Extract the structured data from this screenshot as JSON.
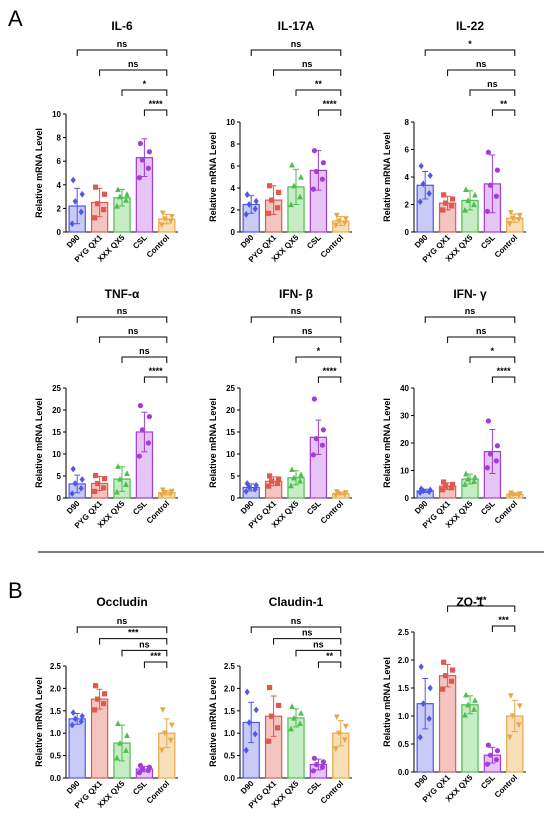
{
  "panel_labels": [
    "A",
    "B"
  ],
  "colors": {
    "groups": [
      "#4f57e6",
      "#e0594f",
      "#4fbd4f",
      "#a23ed6",
      "#e6a94a"
    ],
    "fills": [
      "#c9cbf7",
      "#f4c4bf",
      "#c6ecc5",
      "#e6c4f5",
      "#f9dfb8"
    ],
    "axis": "#000000"
  },
  "chart_data": [
    {
      "id": "il6",
      "panel": "A",
      "type": "bar",
      "title": "IL-6",
      "ylabel": "Relative mRNA Level",
      "categories": [
        "D90",
        "PYG QX1",
        "XXX QX5",
        "CSL",
        "Control"
      ],
      "values": [
        2.2,
        2.5,
        2.9,
        6.3,
        1.1
      ],
      "errors": [
        1.5,
        1.2,
        0.7,
        1.6,
        0.4
      ],
      "points": [
        [
          0.7,
          1.7,
          2.6,
          3.2,
          4.4
        ],
        [
          1.2,
          1.9,
          2.4,
          3.2,
          3.8
        ],
        [
          2.2,
          2.7,
          3.0,
          3.2,
          3.6
        ],
        [
          4.6,
          5.4,
          6.1,
          6.8,
          7.5
        ],
        [
          0.6,
          0.9,
          1.1,
          1.3,
          1.6
        ]
      ],
      "ylim": [
        0,
        10
      ],
      "yticks": [
        0,
        2,
        4,
        6,
        8,
        10
      ],
      "comparisons": [
        {
          "from": 0,
          "to": 4,
          "label": "ns"
        },
        {
          "from": 1,
          "to": 4,
          "label": "ns"
        },
        {
          "from": 2,
          "to": 4,
          "label": "*"
        },
        {
          "from": 3,
          "to": 4,
          "label": "****"
        }
      ]
    },
    {
      "id": "il17a",
      "panel": "A",
      "type": "bar",
      "title": "IL-17A",
      "ylabel": "Relative mRNA Level",
      "categories": [
        "D90",
        "PYG QX1",
        "XXX QX5",
        "CSL",
        "Control"
      ],
      "values": [
        2.5,
        2.9,
        4.1,
        5.6,
        1.0
      ],
      "errors": [
        0.8,
        1.3,
        1.6,
        1.8,
        0.4
      ],
      "points": [
        [
          1.6,
          2.1,
          2.5,
          2.8,
          3.4
        ],
        [
          1.7,
          2.2,
          2.9,
          3.6,
          4.2
        ],
        [
          2.5,
          3.2,
          4.2,
          5.0,
          6.1
        ],
        [
          3.9,
          4.8,
          5.5,
          6.3,
          7.4
        ],
        [
          0.6,
          0.8,
          1.0,
          1.2,
          1.5
        ]
      ],
      "ylim": [
        0,
        10
      ],
      "yticks": [
        0,
        2,
        4,
        6,
        8,
        10
      ],
      "comparisons": [
        {
          "from": 0,
          "to": 4,
          "label": "ns"
        },
        {
          "from": 1,
          "to": 4,
          "label": "ns"
        },
        {
          "from": 2,
          "to": 4,
          "label": "**"
        },
        {
          "from": 3,
          "to": 4,
          "label": "****"
        }
      ]
    },
    {
      "id": "il22",
      "panel": "A",
      "type": "bar",
      "title": "IL-22",
      "ylabel": "Relative mRNA Level",
      "categories": [
        "D90",
        "PYG QX1",
        "XXX QX5",
        "CSL",
        "Control"
      ],
      "values": [
        3.4,
        2.1,
        2.3,
        3.5,
        1.0
      ],
      "errors": [
        1.0,
        0.5,
        0.7,
        2.1,
        0.3
      ],
      "points": [
        [
          2.2,
          2.8,
          3.5,
          4.1,
          4.8
        ],
        [
          1.6,
          1.9,
          2.1,
          2.4,
          2.7
        ],
        [
          1.6,
          2.0,
          2.3,
          2.7,
          3.1
        ],
        [
          1.5,
          2.6,
          3.4,
          4.5,
          5.8
        ],
        [
          0.6,
          0.9,
          1.0,
          1.2,
          1.4
        ]
      ],
      "ylim": [
        0,
        8
      ],
      "yticks": [
        0,
        2,
        4,
        6,
        8
      ],
      "comparisons": [
        {
          "from": 0,
          "to": 4,
          "label": "*"
        },
        {
          "from": 1,
          "to": 4,
          "label": "ns"
        },
        {
          "from": 2,
          "to": 4,
          "label": "ns"
        },
        {
          "from": 3,
          "to": 4,
          "label": "**"
        }
      ]
    },
    {
      "id": "tnfa",
      "panel": "A",
      "type": "bar",
      "title": "TNF-α",
      "ylabel": "Relative mRNA Level",
      "categories": [
        "D90",
        "PYG QX1",
        "XXX QX5",
        "CSL",
        "Control"
      ],
      "values": [
        3.2,
        3.3,
        4.3,
        15.0,
        1.2
      ],
      "errors": [
        2.0,
        1.6,
        2.8,
        4.5,
        0.5
      ],
      "points": [
        [
          1.0,
          2.2,
          3.3,
          4.2,
          6.6
        ],
        [
          1.5,
          2.3,
          3.3,
          4.4,
          5.1
        ],
        [
          1.4,
          3.1,
          4.3,
          5.6,
          7.2
        ],
        [
          9.5,
          12.5,
          15.5,
          18.5,
          21.0
        ],
        [
          0.6,
          0.9,
          1.2,
          1.5,
          1.8
        ]
      ],
      "ylim": [
        0,
        25
      ],
      "yticks": [
        0,
        5,
        10,
        15,
        20,
        25
      ],
      "comparisons": [
        {
          "from": 0,
          "to": 4,
          "label": "ns"
        },
        {
          "from": 1,
          "to": 4,
          "label": "ns"
        },
        {
          "from": 2,
          "to": 4,
          "label": "ns"
        },
        {
          "from": 3,
          "to": 4,
          "label": "****"
        }
      ]
    },
    {
      "id": "ifnb",
      "panel": "A",
      "type": "bar",
      "title": "IFN- β",
      "ylabel": "Relative mRNA Level",
      "categories": [
        "D90",
        "PYG QX1",
        "XXX QX5",
        "CSL",
        "Control"
      ],
      "values": [
        2.4,
        3.8,
        4.6,
        13.8,
        1.0
      ],
      "errors": [
        0.8,
        1.0,
        1.6,
        3.9,
        0.3
      ],
      "points": [
        [
          1.5,
          2.0,
          2.4,
          2.9,
          3.3
        ],
        [
          2.7,
          3.3,
          3.8,
          4.3,
          5.0
        ],
        [
          2.8,
          3.9,
          4.6,
          5.3,
          6.5
        ],
        [
          9.8,
          12.0,
          13.5,
          15.5,
          22.5
        ],
        [
          0.6,
          0.8,
          1.0,
          1.2,
          1.4
        ]
      ],
      "ylim": [
        0,
        25
      ],
      "yticks": [
        0,
        5,
        10,
        15,
        20,
        25
      ],
      "comparisons": [
        {
          "from": 0,
          "to": 4,
          "label": "ns"
        },
        {
          "from": 1,
          "to": 4,
          "label": "ns"
        },
        {
          "from": 2,
          "to": 4,
          "label": "*"
        },
        {
          "from": 3,
          "to": 4,
          "label": "****"
        }
      ]
    },
    {
      "id": "ifng",
      "panel": "A",
      "type": "bar",
      "title": "IFN- γ",
      "ylabel": "Relative mRNA Level",
      "categories": [
        "D90",
        "PYG QX1",
        "XXX QX5",
        "CSL",
        "Control"
      ],
      "values": [
        2.6,
        4.3,
        6.9,
        16.9,
        1.3
      ],
      "errors": [
        0.6,
        1.2,
        1.8,
        8.0,
        0.4
      ],
      "points": [
        [
          2.0,
          2.3,
          2.6,
          2.9,
          3.3
        ],
        [
          3.0,
          3.7,
          4.3,
          4.9,
          5.8
        ],
        [
          5.0,
          6.1,
          6.9,
          7.6,
          8.8
        ],
        [
          11.0,
          13.5,
          16.0,
          19.0,
          28.0
        ],
        [
          0.8,
          1.1,
          1.3,
          1.5,
          1.8
        ]
      ],
      "ylim": [
        0,
        40
      ],
      "yticks": [
        0,
        10,
        20,
        30,
        40
      ],
      "comparisons": [
        {
          "from": 0,
          "to": 4,
          "label": "ns"
        },
        {
          "from": 1,
          "to": 4,
          "label": "ns"
        },
        {
          "from": 2,
          "to": 4,
          "label": "*"
        },
        {
          "from": 3,
          "to": 4,
          "label": "****"
        }
      ]
    },
    {
      "id": "occludin",
      "panel": "B",
      "type": "bar",
      "title": "Occludin",
      "ylabel": "Relative mRNA Level",
      "categories": [
        "D90",
        "PYG QX1",
        "XXX QX5",
        "CSL",
        "Control"
      ],
      "values": [
        1.32,
        1.76,
        0.78,
        0.2,
        1.0
      ],
      "errors": [
        0.12,
        0.22,
        0.4,
        0.06,
        0.32
      ],
      "points": [
        [
          1.18,
          1.26,
          1.32,
          1.38,
          1.46
        ],
        [
          1.52,
          1.66,
          1.76,
          1.88,
          2.06
        ],
        [
          0.45,
          0.62,
          0.78,
          0.95,
          1.22
        ],
        [
          0.12,
          0.17,
          0.2,
          0.24,
          0.28
        ],
        [
          0.62,
          0.84,
          1.0,
          1.18,
          1.52
        ]
      ],
      "ylim": [
        0,
        2.5
      ],
      "yticks": [
        0.0,
        0.5,
        1.0,
        1.5,
        2.0,
        2.5
      ],
      "comparisons": [
        {
          "from": 0,
          "to": 4,
          "label": "ns"
        },
        {
          "from": 1,
          "to": 4,
          "label": "***"
        },
        {
          "from": 2,
          "to": 4,
          "label": "ns"
        },
        {
          "from": 3,
          "to": 4,
          "label": "***"
        }
      ]
    },
    {
      "id": "claudin1",
      "panel": "B",
      "type": "bar",
      "title": "Claudin-1",
      "ylabel": "Relative mRNA Level",
      "categories": [
        "D90",
        "PYG QX1",
        "XXX QX5",
        "CSL",
        "Control"
      ],
      "values": [
        1.24,
        1.38,
        1.34,
        0.3,
        1.0
      ],
      "errors": [
        0.45,
        0.45,
        0.2,
        0.12,
        0.28
      ],
      "points": [
        [
          0.62,
          0.98,
          1.24,
          1.52,
          1.92
        ],
        [
          0.82,
          1.12,
          1.38,
          1.62,
          2.02
        ],
        [
          1.1,
          1.22,
          1.34,
          1.45,
          1.6
        ],
        [
          0.16,
          0.24,
          0.3,
          0.36,
          0.44
        ],
        [
          0.65,
          0.85,
          1.0,
          1.15,
          1.36
        ]
      ],
      "ylim": [
        0,
        2.5
      ],
      "yticks": [
        0.0,
        0.5,
        1.0,
        1.5,
        2.0,
        2.5
      ],
      "comparisons": [
        {
          "from": 0,
          "to": 4,
          "label": "ns"
        },
        {
          "from": 1,
          "to": 4,
          "label": "ns"
        },
        {
          "from": 2,
          "to": 4,
          "label": "ns"
        },
        {
          "from": 3,
          "to": 4,
          "label": "**"
        }
      ]
    },
    {
      "id": "zo1",
      "panel": "B",
      "type": "bar",
      "title": "ZO-1",
      "ylabel": "Relative mRNA Level",
      "categories": [
        "D90",
        "PYG QX1",
        "XXX QX5",
        "CSL",
        "Control"
      ],
      "values": [
        1.22,
        1.72,
        1.2,
        0.3,
        1.0
      ],
      "errors": [
        0.45,
        0.2,
        0.16,
        0.14,
        0.28
      ],
      "points": [
        [
          0.62,
          0.95,
          1.22,
          1.5,
          1.88
        ],
        [
          1.48,
          1.62,
          1.72,
          1.82,
          1.96
        ],
        [
          1.02,
          1.12,
          1.2,
          1.28,
          1.38
        ],
        [
          0.14,
          0.22,
          0.3,
          0.38,
          0.48
        ],
        [
          0.62,
          0.84,
          1.0,
          1.18,
          1.36
        ]
      ],
      "ylim": [
        0,
        2.5
      ],
      "yticks": [
        0.0,
        0.5,
        1.0,
        1.5,
        2.0,
        2.5
      ],
      "comparisons": [
        {
          "from": 1,
          "to": 4,
          "label": "***"
        },
        {
          "from": 3,
          "to": 4,
          "label": "***"
        }
      ]
    }
  ]
}
